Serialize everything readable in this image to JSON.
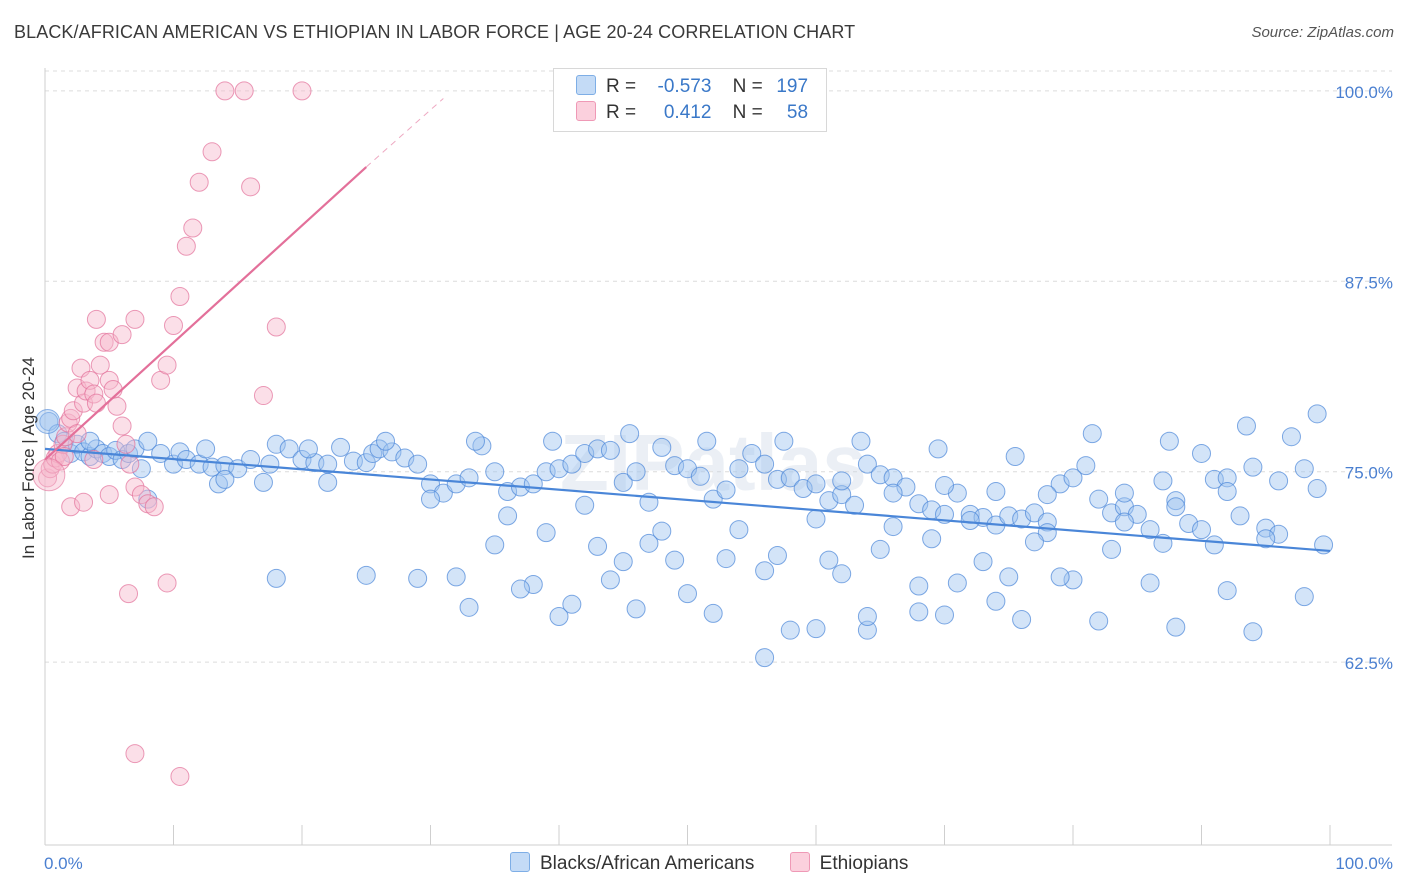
{
  "title": "BLACK/AFRICAN AMERICAN VS ETHIOPIAN IN LABOR FORCE | AGE 20-24 CORRELATION CHART",
  "source": "Source: ZipAtlas.com",
  "watermark": "ZIPatlas",
  "legend": {
    "r_label": "R =",
    "n_label": "N =",
    "rows": [
      {
        "r": "-0.573",
        "n": "197",
        "color": "#9ec3f0"
      },
      {
        "r": "0.412",
        "n": "58",
        "color": "#f6b7cb"
      }
    ]
  },
  "bottom_legend": [
    {
      "label": "Blacks/African Americans",
      "color": "#9ec3f0"
    },
    {
      "label": "Ethiopians",
      "color": "#f6b7cb"
    }
  ],
  "chart_data": {
    "type": "scatter",
    "title": "BLACK/AFRICAN AMERICAN VS ETHIOPIAN IN LABOR FORCE | AGE 20-24 CORRELATION CHART",
    "xlabel": "",
    "ylabel": "In Labor Force | Age 20-24",
    "xlim": [
      0,
      100
    ],
    "ylim": [
      50.5,
      101.5
    ],
    "y_ticks": [
      62.5,
      75.0,
      87.5,
      100.0
    ],
    "y_tick_labels": [
      "62.5%",
      "75.0%",
      "87.5%",
      "100.0%"
    ],
    "x_tick_labels": [
      "0.0%",
      "100.0%"
    ],
    "grid": true,
    "series": [
      {
        "name": "Blacks/African Americans",
        "color": "#4a86d8",
        "fill": "#9ec3f0",
        "R": -0.573,
        "N": 197,
        "trend": {
          "x": [
            0,
            100
          ],
          "y": [
            76.5,
            69.8
          ]
        },
        "points": [
          [
            0.3,
            78.3
          ],
          [
            1,
            77.5
          ],
          [
            1.5,
            77
          ],
          [
            2,
            76.2
          ],
          [
            2.5,
            76.8
          ],
          [
            3,
            76.3
          ],
          [
            3.5,
            76
          ],
          [
            4,
            76.5
          ],
          [
            4.5,
            76.2
          ],
          [
            5,
            76
          ],
          [
            5.5,
            76.4
          ],
          [
            6,
            75.8
          ],
          [
            6.5,
            76.2
          ],
          [
            7,
            76.5
          ],
          [
            8,
            77
          ],
          [
            9,
            76.2
          ],
          [
            10,
            75.5
          ],
          [
            10.5,
            76.3
          ],
          [
            11,
            75.8
          ],
          [
            12,
            75.5
          ],
          [
            12.5,
            76.5
          ],
          [
            13,
            75.3
          ],
          [
            14,
            75.4
          ],
          [
            15,
            75.2
          ],
          [
            16,
            75.8
          ],
          [
            17,
            74.3
          ],
          [
            17.5,
            75.5
          ],
          [
            18,
            76.8
          ],
          [
            19,
            76.5
          ],
          [
            20,
            75.8
          ],
          [
            21,
            75.6
          ],
          [
            22,
            75.5
          ],
          [
            23,
            76.6
          ],
          [
            24,
            75.7
          ],
          [
            25,
            75.6
          ],
          [
            25.5,
            76.2
          ],
          [
            26,
            76.5
          ],
          [
            27,
            76.3
          ],
          [
            28,
            75.9
          ],
          [
            29,
            75.5
          ],
          [
            30,
            74.2
          ],
          [
            31,
            73.6
          ],
          [
            32,
            74.2
          ],
          [
            33,
            74.6
          ],
          [
            34,
            76.7
          ],
          [
            35,
            75
          ],
          [
            36,
            73.7
          ],
          [
            37,
            74
          ],
          [
            38,
            74.2
          ],
          [
            39,
            75
          ],
          [
            40,
            75.2
          ],
          [
            41,
            75.5
          ],
          [
            42,
            76.2
          ],
          [
            43,
            76.5
          ],
          [
            44,
            76.4
          ],
          [
            45,
            74.3
          ],
          [
            46,
            75
          ],
          [
            47,
            73
          ],
          [
            48,
            76.6
          ],
          [
            49,
            75.4
          ],
          [
            50,
            75.2
          ],
          [
            51,
            74.7
          ],
          [
            52,
            73.2
          ],
          [
            53,
            73.8
          ],
          [
            54,
            75.2
          ],
          [
            55,
            76.2
          ],
          [
            56,
            75.5
          ],
          [
            57,
            74.5
          ],
          [
            58,
            74.6
          ],
          [
            59,
            73.9
          ],
          [
            60,
            74.2
          ],
          [
            61,
            73.1
          ],
          [
            62,
            73.5
          ],
          [
            63,
            72.8
          ],
          [
            64,
            75.5
          ],
          [
            65,
            74.8
          ],
          [
            66,
            74.6
          ],
          [
            67,
            74
          ],
          [
            68,
            72.9
          ],
          [
            69,
            72.5
          ],
          [
            70,
            72.2
          ],
          [
            71,
            73.6
          ],
          [
            72,
            72.2
          ],
          [
            73,
            72
          ],
          [
            74,
            71.5
          ],
          [
            75,
            72.1
          ],
          [
            76,
            71.9
          ],
          [
            77,
            72.3
          ],
          [
            78,
            71.7
          ],
          [
            79,
            74.2
          ],
          [
            80,
            74.6
          ],
          [
            81,
            75.4
          ],
          [
            82,
            73.2
          ],
          [
            83,
            72.3
          ],
          [
            84,
            72.7
          ],
          [
            85,
            72.2
          ],
          [
            86,
            71.2
          ],
          [
            87,
            74.4
          ],
          [
            88,
            73.1
          ],
          [
            89,
            71.6
          ],
          [
            90,
            76.2
          ],
          [
            91,
            74.5
          ],
          [
            92,
            74.6
          ],
          [
            93,
            72.1
          ],
          [
            94,
            75.3
          ],
          [
            95,
            71.3
          ],
          [
            96,
            74.4
          ],
          [
            97,
            77.3
          ],
          [
            98,
            75.2
          ],
          [
            99,
            73.9
          ],
          [
            99.5,
            70.2
          ],
          [
            3.5,
            77
          ],
          [
            7.5,
            75.2
          ],
          [
            13.5,
            74.2
          ],
          [
            20.5,
            76.5
          ],
          [
            26.5,
            77
          ],
          [
            33.5,
            77
          ],
          [
            39.5,
            77
          ],
          [
            45.5,
            77.5
          ],
          [
            51.5,
            77
          ],
          [
            57.5,
            77
          ],
          [
            63.5,
            77
          ],
          [
            69.5,
            76.5
          ],
          [
            75.5,
            76
          ],
          [
            81.5,
            77.5
          ],
          [
            87.5,
            77
          ],
          [
            93.5,
            78
          ],
          [
            99,
            78.8
          ],
          [
            8,
            73.2
          ],
          [
            14,
            74.5
          ],
          [
            22,
            74.3
          ],
          [
            30,
            73.2
          ],
          [
            36,
            72.1
          ],
          [
            42,
            72.8
          ],
          [
            48,
            71.1
          ],
          [
            54,
            71.2
          ],
          [
            60,
            71.9
          ],
          [
            66,
            71.4
          ],
          [
            72,
            71.8
          ],
          [
            78,
            71
          ],
          [
            84,
            71.7
          ],
          [
            90,
            71.2
          ],
          [
            96,
            70.9
          ],
          [
            18,
            68
          ],
          [
            25,
            68.2
          ],
          [
            32,
            68.1
          ],
          [
            38,
            67.6
          ],
          [
            44,
            67.9
          ],
          [
            50,
            67
          ],
          [
            56,
            68.5
          ],
          [
            62,
            68.3
          ],
          [
            68,
            67.5
          ],
          [
            74,
            66.5
          ],
          [
            80,
            67.9
          ],
          [
            86,
            67.7
          ],
          [
            92,
            67.2
          ],
          [
            98,
            66.8
          ],
          [
            40,
            65.5
          ],
          [
            46,
            66
          ],
          [
            52,
            65.7
          ],
          [
            58,
            64.6
          ],
          [
            64,
            64.6
          ],
          [
            70,
            65.6
          ],
          [
            76,
            65.3
          ],
          [
            82,
            65.2
          ],
          [
            88,
            64.8
          ],
          [
            94,
            64.5
          ],
          [
            56,
            62.8
          ],
          [
            60,
            64.7
          ],
          [
            64,
            65.5
          ],
          [
            68,
            65.8
          ],
          [
            71,
            67.7
          ],
          [
            75,
            68.1
          ],
          [
            79,
            68.1
          ],
          [
            83,
            69.9
          ],
          [
            87,
            70.3
          ],
          [
            91,
            70.2
          ],
          [
            95,
            70.6
          ],
          [
            45,
            69.1
          ],
          [
            49,
            69.2
          ],
          [
            53,
            69.3
          ],
          [
            57,
            69.5
          ],
          [
            61,
            69.2
          ],
          [
            65,
            69.9
          ],
          [
            69,
            70.6
          ],
          [
            73,
            69.1
          ],
          [
            77,
            70.4
          ],
          [
            29,
            68
          ],
          [
            33,
            66.1
          ],
          [
            37,
            67.3
          ],
          [
            41,
            66.3
          ],
          [
            35,
            70.2
          ],
          [
            39,
            71
          ],
          [
            43,
            70.1
          ],
          [
            47,
            70.3
          ],
          [
            62,
            74.4
          ],
          [
            66,
            73.6
          ],
          [
            70,
            74.1
          ],
          [
            74,
            73.7
          ],
          [
            78,
            73.5
          ],
          [
            84,
            73.6
          ],
          [
            88,
            72.7
          ],
          [
            92,
            73.7
          ]
        ]
      },
      {
        "name": "Ethiopians",
        "color": "#e3709a",
        "fill": "#f6b7cb",
        "R": 0.412,
        "N": 58,
        "trend": {
          "x": [
            0,
            25
          ],
          "y": [
            75.8,
            95.0
          ]
        },
        "trend_dashed": {
          "x": [
            25,
            31
          ],
          "y": [
            95.0,
            99.5
          ]
        },
        "points": [
          [
            0.2,
            74.6
          ],
          [
            0.4,
            75.2
          ],
          [
            0.6,
            75.5
          ],
          [
            0.8,
            75.9
          ],
          [
            1,
            76.2
          ],
          [
            1.2,
            75.7
          ],
          [
            1.4,
            76.8
          ],
          [
            1.6,
            77.3
          ],
          [
            1.8,
            78.2
          ],
          [
            2,
            78.5
          ],
          [
            2.2,
            79
          ],
          [
            2.5,
            80.5
          ],
          [
            2.8,
            81.8
          ],
          [
            3,
            79.5
          ],
          [
            3.2,
            80.3
          ],
          [
            3.5,
            81
          ],
          [
            3.8,
            80.1
          ],
          [
            4,
            79.5
          ],
          [
            4.3,
            82
          ],
          [
            4.6,
            83.5
          ],
          [
            5,
            81
          ],
          [
            5.3,
            80.4
          ],
          [
            5.6,
            79.3
          ],
          [
            6,
            78
          ],
          [
            6.3,
            76.8
          ],
          [
            6.6,
            75.5
          ],
          [
            7,
            74
          ],
          [
            7.5,
            73.5
          ],
          [
            8,
            72.9
          ],
          [
            8.5,
            72.7
          ],
          [
            9,
            81
          ],
          [
            9.5,
            82
          ],
          [
            10,
            84.6
          ],
          [
            10.5,
            86.5
          ],
          [
            11,
            89.8
          ],
          [
            11.5,
            91
          ],
          [
            12,
            94
          ],
          [
            13,
            96
          ],
          [
            14,
            100
          ],
          [
            15.5,
            100
          ],
          [
            16,
            93.7
          ],
          [
            17,
            80
          ],
          [
            18,
            84.5
          ],
          [
            20,
            100
          ],
          [
            4,
            85
          ],
          [
            5,
            83.5
          ],
          [
            6,
            84
          ],
          [
            7,
            85
          ],
          [
            2,
            72.7
          ],
          [
            3,
            73
          ],
          [
            5,
            73.5
          ],
          [
            6.5,
            67
          ],
          [
            7,
            56.5
          ],
          [
            9.5,
            67.7
          ],
          [
            10.5,
            55
          ],
          [
            1.5,
            76
          ],
          [
            2.5,
            77.5
          ],
          [
            3.8,
            75.8
          ]
        ]
      }
    ]
  }
}
